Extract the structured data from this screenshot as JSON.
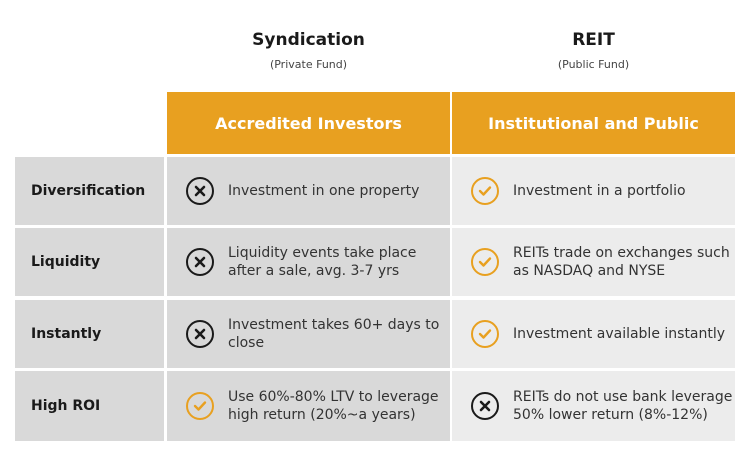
{
  "columns": [
    {
      "title": "Syndication",
      "subtitle": "(Private Fund)",
      "band": "Accredited Investors"
    },
    {
      "title": "REIT",
      "subtitle": "(Public Fund)",
      "band": "Institutional and Public"
    }
  ],
  "rows": [
    {
      "label": "Diversification",
      "c1": {
        "icon": "x-circle-icon",
        "text": "Investment in one property"
      },
      "c2": {
        "icon": "check-circle-icon",
        "text": "Investment in a portfolio"
      }
    },
    {
      "label": "Liquidity",
      "c1": {
        "icon": "x-circle-icon",
        "text": "Liquidity events take place after a sale, avg. 3-7 yrs"
      },
      "c2": {
        "icon": "check-circle-icon",
        "text": "REITs trade on exchanges such as NASDAQ and NYSE"
      }
    },
    {
      "label": "Instantly",
      "c1": {
        "icon": "x-circle-icon",
        "text": "Investment takes 60+ days to close"
      },
      "c2": {
        "icon": "check-circle-icon",
        "text": "Investment available instantly"
      }
    },
    {
      "label": "High ROI",
      "c1": {
        "icon": "check-circle-icon",
        "text": "Use 60%-80%  LTV to leverage high return (20%~a years)"
      },
      "c2": {
        "icon": "x-circle-icon",
        "text": "REITs do not use bank leverage 50% lower return (8%-12%)"
      }
    }
  ],
  "colors": {
    "accent": "#e8a020",
    "row_dark": "#d9d9d9",
    "row_light": "#ececec"
  }
}
